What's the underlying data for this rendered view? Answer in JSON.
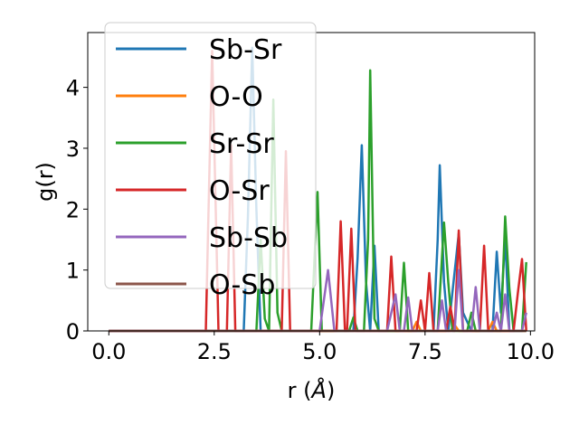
{
  "chart_data": {
    "type": "line",
    "xlabel_prefix": "r (",
    "xlabel_unit": "Å",
    "xlabel_suffix": ")",
    "ylabel": "g(r)",
    "xlim": [
      -0.5,
      10.1
    ],
    "ylim": [
      0,
      4.9
    ],
    "xticks": [
      0.0,
      2.5,
      5.0,
      7.5,
      10.0
    ],
    "xtick_labels": [
      "0.0",
      "2.5",
      "5.0",
      "7.5",
      "10.0"
    ],
    "yticks": [
      0,
      1,
      2,
      3,
      4
    ],
    "ytick_labels": [
      "0",
      "1",
      "2",
      "3",
      "4"
    ],
    "grid": false,
    "legend": "upper-left",
    "series": [
      {
        "name": "Sb-Sr",
        "color": "#1f77b4",
        "points": [
          [
            0,
            0
          ],
          [
            3.2,
            0
          ],
          [
            3.3,
            1.9
          ],
          [
            3.4,
            4.65
          ],
          [
            3.5,
            2.0
          ],
          [
            3.6,
            0
          ],
          [
            5.8,
            0
          ],
          [
            5.9,
            1.2
          ],
          [
            6.0,
            3.05
          ],
          [
            6.1,
            0.8
          ],
          [
            6.2,
            0
          ],
          [
            6.3,
            1.4
          ],
          [
            6.4,
            0
          ],
          [
            7.7,
            0
          ],
          [
            7.8,
            1.5
          ],
          [
            7.85,
            2.72
          ],
          [
            7.95,
            0.8
          ],
          [
            8.05,
            0
          ],
          [
            8.3,
            1.6
          ],
          [
            8.4,
            0.3
          ],
          [
            8.6,
            0
          ],
          [
            9.1,
            0
          ],
          [
            9.2,
            1.3
          ],
          [
            9.3,
            0.3
          ],
          [
            9.4,
            1.55
          ],
          [
            9.5,
            0
          ],
          [
            9.9,
            0
          ]
        ]
      },
      {
        "name": "O-O",
        "color": "#ff7f0e",
        "points": [
          [
            0,
            0
          ],
          [
            7.2,
            0
          ],
          [
            7.3,
            0.15
          ],
          [
            7.4,
            0
          ],
          [
            8.1,
            0
          ],
          [
            8.2,
            0.1
          ],
          [
            8.3,
            0
          ],
          [
            9.0,
            0
          ],
          [
            9.1,
            0.15
          ],
          [
            9.2,
            0
          ],
          [
            9.9,
            0
          ]
        ]
      },
      {
        "name": "Sr-Sr",
        "color": "#2ca02c",
        "points": [
          [
            0,
            0
          ],
          [
            3.5,
            0
          ],
          [
            3.6,
            1.5
          ],
          [
            3.7,
            0.2
          ],
          [
            3.8,
            0
          ],
          [
            3.9,
            3.8
          ],
          [
            4.0,
            0.3
          ],
          [
            4.1,
            0
          ],
          [
            4.8,
            0
          ],
          [
            4.95,
            2.28
          ],
          [
            5.05,
            0
          ],
          [
            5.7,
            0
          ],
          [
            5.8,
            0.22
          ],
          [
            5.9,
            0
          ],
          [
            6.05,
            0
          ],
          [
            6.15,
            1.5
          ],
          [
            6.2,
            4.28
          ],
          [
            6.3,
            0.2
          ],
          [
            6.4,
            0
          ],
          [
            6.9,
            0
          ],
          [
            7.0,
            1.12
          ],
          [
            7.1,
            0
          ],
          [
            7.8,
            0
          ],
          [
            7.95,
            1.78
          ],
          [
            8.05,
            0.8
          ],
          [
            8.15,
            0
          ],
          [
            8.5,
            0
          ],
          [
            8.6,
            0.3
          ],
          [
            8.7,
            0
          ],
          [
            9.3,
            0
          ],
          [
            9.4,
            1.88
          ],
          [
            9.5,
            0.7
          ],
          [
            9.6,
            0
          ],
          [
            9.8,
            0
          ],
          [
            9.9,
            1.13
          ]
        ]
      },
      {
        "name": "O-Sr",
        "color": "#d62728",
        "points": [
          [
            0,
            0
          ],
          [
            2.3,
            0
          ],
          [
            2.45,
            4.6
          ],
          [
            2.6,
            0
          ],
          [
            2.8,
            0
          ],
          [
            2.9,
            3.05
          ],
          [
            3.0,
            0
          ],
          [
            4.1,
            0
          ],
          [
            4.2,
            2.95
          ],
          [
            4.3,
            0
          ],
          [
            5.4,
            0
          ],
          [
            5.5,
            1.8
          ],
          [
            5.6,
            0
          ],
          [
            5.65,
            0
          ],
          [
            5.75,
            1.68
          ],
          [
            5.85,
            0
          ],
          [
            6.6,
            0
          ],
          [
            6.7,
            1.22
          ],
          [
            6.8,
            0
          ],
          [
            7.3,
            0
          ],
          [
            7.4,
            0.5
          ],
          [
            7.5,
            0
          ],
          [
            7.6,
            0.95
          ],
          [
            7.7,
            0
          ],
          [
            8.0,
            0
          ],
          [
            8.1,
            0.4
          ],
          [
            8.2,
            0
          ],
          [
            8.3,
            1.65
          ],
          [
            8.4,
            0
          ],
          [
            8.8,
            0
          ],
          [
            8.9,
            1.4
          ],
          [
            9.0,
            0
          ],
          [
            9.6,
            0
          ],
          [
            9.7,
            0.62
          ],
          [
            9.8,
            1.18
          ],
          [
            9.9,
            0
          ]
        ]
      },
      {
        "name": "Sb-Sb",
        "color": "#9467bd",
        "points": [
          [
            0,
            0
          ],
          [
            5.0,
            0
          ],
          [
            5.2,
            1.0
          ],
          [
            5.35,
            0
          ],
          [
            6.6,
            0
          ],
          [
            6.8,
            0.6
          ],
          [
            6.9,
            0
          ],
          [
            7.0,
            0
          ],
          [
            7.1,
            0.55
          ],
          [
            7.2,
            0
          ],
          [
            7.8,
            0
          ],
          [
            7.9,
            0.5
          ],
          [
            8.0,
            0
          ],
          [
            8.2,
            0
          ],
          [
            8.3,
            1.0
          ],
          [
            8.4,
            0
          ],
          [
            8.6,
            0
          ],
          [
            8.7,
            0.72
          ],
          [
            8.8,
            0
          ],
          [
            9.1,
            0
          ],
          [
            9.2,
            0.3
          ],
          [
            9.3,
            0
          ],
          [
            9.4,
            0.6
          ],
          [
            9.5,
            0
          ],
          [
            9.8,
            0
          ],
          [
            9.9,
            0.3
          ]
        ]
      },
      {
        "name": "O-Sb",
        "color": "#8c564b",
        "points": [
          [
            0,
            0
          ],
          [
            9.9,
            0
          ]
        ]
      }
    ]
  }
}
